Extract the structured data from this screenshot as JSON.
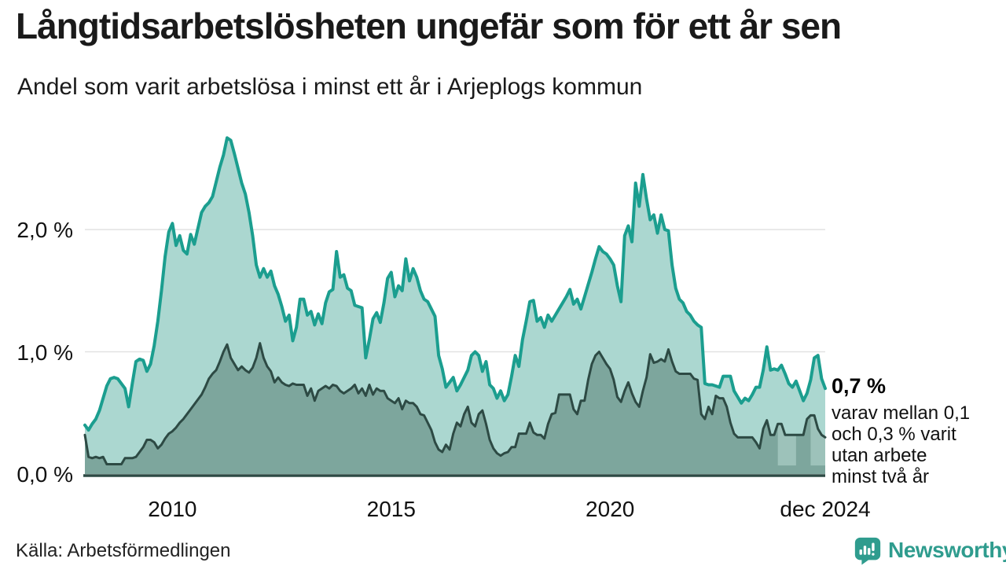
{
  "header": {
    "title": "Långtidsarbetslösheten ungefär som för ett år sen",
    "subtitle": "Andel som varit arbetslösa i minst ett år i Arjeplogs kommun"
  },
  "annotation": {
    "value_label": "0,7 %",
    "lines": [
      "varav mellan 0,1",
      "och 0,3 % varit",
      "utan arbete",
      "minst två år"
    ]
  },
  "footer": {
    "source": "Källa: Arbetsförmedlingen",
    "brand": "Newsworthy"
  },
  "colors": {
    "teal_line": "#1b9e8f",
    "light_fill": "#abd7d0",
    "dark_fill": "#7da69d",
    "dark_line": "#2d4a44",
    "band_fill": "#9dc2ba",
    "gridline": "#e2e2e2",
    "brand_teal": "#2f9c8e",
    "text": "#1a1a1a"
  },
  "chart_data": {
    "type": "area",
    "title": "Andel som varit arbetslösa i minst ett år i Arjeplogs kommun",
    "unit": "%",
    "frequency": "monthly",
    "x_start": "jan 2008",
    "x_end": "dec 2024",
    "ylim": [
      0,
      2.9
    ],
    "grid_values": [
      1.0,
      2.0
    ],
    "y_ticks": [
      {
        "value": 0.0,
        "label": "0,0 %"
      },
      {
        "value": 1.0,
        "label": "1,0 %"
      },
      {
        "value": 2.0,
        "label": "2,0 %"
      }
    ],
    "x_ticks": [
      {
        "index": 24,
        "label": "2010"
      },
      {
        "index": 84,
        "label": "2015"
      },
      {
        "index": 144,
        "label": "2020"
      },
      {
        "index": 203,
        "label": "dec 2024"
      }
    ],
    "series": [
      {
        "name": "arbetslösa minst ett år",
        "line_color": "#1b9e8f",
        "fill_color": "#abd7d0",
        "values": [
          0.4,
          0.36,
          0.41,
          0.45,
          0.52,
          0.62,
          0.72,
          0.78,
          0.79,
          0.78,
          0.74,
          0.7,
          0.55,
          0.74,
          0.92,
          0.94,
          0.93,
          0.84,
          0.9,
          1.05,
          1.25,
          1.5,
          1.78,
          1.98,
          2.05,
          1.87,
          1.95,
          1.83,
          1.8,
          1.96,
          1.88,
          2.01,
          2.14,
          2.19,
          2.22,
          2.27,
          2.39,
          2.51,
          2.61,
          2.75,
          2.73,
          2.62,
          2.5,
          2.38,
          2.29,
          2.14,
          1.95,
          1.71,
          1.61,
          1.68,
          1.61,
          1.66,
          1.54,
          1.47,
          1.37,
          1.25,
          1.3,
          1.09,
          1.2,
          1.43,
          1.43,
          1.3,
          1.33,
          1.22,
          1.31,
          1.23,
          1.4,
          1.49,
          1.51,
          1.82,
          1.61,
          1.63,
          1.52,
          1.5,
          1.38,
          1.37,
          1.36,
          0.95,
          1.1,
          1.27,
          1.32,
          1.24,
          1.4,
          1.6,
          1.65,
          1.45,
          1.54,
          1.5,
          1.76,
          1.58,
          1.68,
          1.61,
          1.5,
          1.43,
          1.41,
          1.35,
          1.29,
          0.97,
          0.86,
          0.71,
          0.75,
          0.79,
          0.68,
          0.73,
          0.79,
          0.85,
          0.97,
          1.0,
          0.97,
          0.84,
          0.92,
          0.73,
          0.7,
          0.62,
          0.68,
          0.6,
          0.65,
          0.8,
          0.97,
          0.88,
          1.1,
          1.25,
          1.41,
          1.42,
          1.25,
          1.28,
          1.2,
          1.3,
          1.25,
          1.3,
          1.35,
          1.4,
          1.45,
          1.51,
          1.39,
          1.43,
          1.35,
          1.45,
          1.55,
          1.65,
          1.76,
          1.86,
          1.82,
          1.8,
          1.76,
          1.71,
          1.54,
          1.41,
          1.95,
          2.03,
          1.9,
          2.38,
          2.19,
          2.45,
          2.25,
          2.08,
          2.12,
          1.97,
          2.12,
          2.0,
          1.99,
          1.71,
          1.52,
          1.43,
          1.4,
          1.33,
          1.3,
          1.25,
          1.22,
          1.2,
          0.74,
          0.73,
          0.73,
          0.72,
          0.71,
          0.8,
          0.8,
          0.8,
          0.68,
          0.63,
          0.58,
          0.62,
          0.6,
          0.65,
          0.71,
          0.71,
          0.85,
          1.04,
          0.85,
          0.86,
          0.85,
          0.89,
          0.82,
          0.74,
          0.71,
          0.76,
          0.68,
          0.6,
          0.66,
          0.77,
          0.95,
          0.97,
          0.78,
          0.7
        ]
      },
      {
        "name": "varav utan arbete minst två år",
        "line_color": "#2d4a44",
        "fill_color": "#7da69d",
        "values": [
          0.32,
          0.14,
          0.13,
          0.14,
          0.13,
          0.14,
          0.08,
          0.08,
          0.08,
          0.08,
          0.08,
          0.13,
          0.13,
          0.13,
          0.14,
          0.18,
          0.22,
          0.28,
          0.28,
          0.26,
          0.21,
          0.24,
          0.29,
          0.33,
          0.35,
          0.38,
          0.42,
          0.45,
          0.49,
          0.53,
          0.57,
          0.61,
          0.65,
          0.71,
          0.78,
          0.82,
          0.85,
          0.92,
          1.0,
          1.06,
          0.95,
          0.9,
          0.85,
          0.88,
          0.85,
          0.83,
          0.87,
          0.95,
          1.07,
          0.95,
          0.88,
          0.84,
          0.75,
          0.79,
          0.75,
          0.73,
          0.72,
          0.74,
          0.73,
          0.73,
          0.73,
          0.64,
          0.7,
          0.6,
          0.68,
          0.7,
          0.72,
          0.7,
          0.73,
          0.72,
          0.68,
          0.66,
          0.68,
          0.7,
          0.73,
          0.66,
          0.7,
          0.64,
          0.73,
          0.65,
          0.7,
          0.68,
          0.68,
          0.62,
          0.6,
          0.58,
          0.62,
          0.53,
          0.6,
          0.58,
          0.58,
          0.55,
          0.49,
          0.48,
          0.42,
          0.36,
          0.26,
          0.2,
          0.18,
          0.24,
          0.2,
          0.33,
          0.42,
          0.39,
          0.49,
          0.55,
          0.42,
          0.39,
          0.49,
          0.52,
          0.41,
          0.28,
          0.21,
          0.17,
          0.15,
          0.17,
          0.18,
          0.22,
          0.22,
          0.33,
          0.33,
          0.33,
          0.42,
          0.34,
          0.32,
          0.32,
          0.29,
          0.41,
          0.49,
          0.5,
          0.65,
          0.65,
          0.65,
          0.65,
          0.53,
          0.49,
          0.6,
          0.6,
          0.77,
          0.9,
          0.97,
          1.0,
          0.95,
          0.9,
          0.86,
          0.77,
          0.63,
          0.59,
          0.68,
          0.75,
          0.66,
          0.59,
          0.55,
          0.68,
          0.79,
          0.98,
          0.91,
          0.92,
          0.94,
          0.92,
          1.02,
          0.92,
          0.84,
          0.82,
          0.82,
          0.82,
          0.82,
          0.78,
          0.77,
          0.49,
          0.45,
          0.55,
          0.49,
          0.64,
          0.62,
          0.62,
          0.55,
          0.42,
          0.33,
          0.3,
          0.3,
          0.3,
          0.3,
          0.3,
          0.26,
          0.21,
          0.37,
          0.44,
          0.32,
          0.32,
          0.41,
          0.41,
          0.32,
          0.32,
          0.32,
          0.32,
          0.32,
          0.32,
          0.45,
          0.48,
          0.48,
          0.37,
          0.32,
          0.3
        ]
      }
    ],
    "uncertainty_bands": [
      {
        "from_index": 190,
        "to_index": 195,
        "low": 0.07
      },
      {
        "from_index": 199,
        "to_index": 203,
        "low": 0.07
      }
    ],
    "latest": {
      "label": "dec 2024",
      "value_min_one_year": 0.7,
      "value_min_two_years_range": [
        0.1,
        0.3
      ]
    }
  }
}
